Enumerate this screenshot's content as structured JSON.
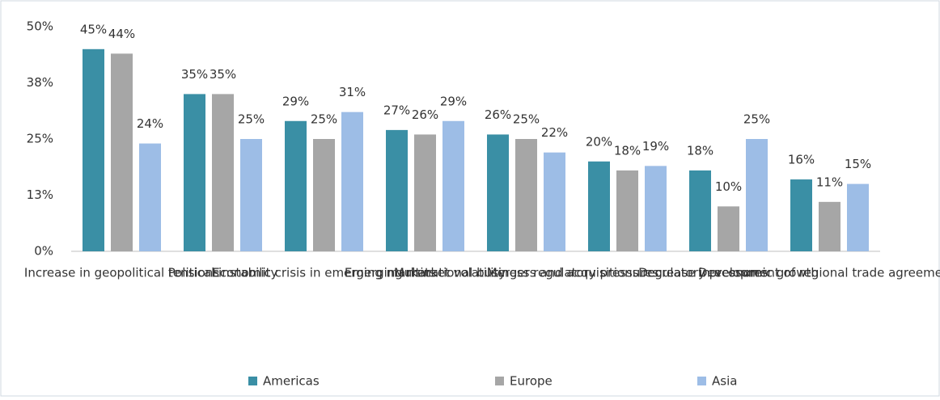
{
  "chart_data": {
    "type": "bar",
    "categories": [
      "Increase in geopolitical tensions",
      "Political instability",
      "Economic crisis in emerging markets",
      "Emerging market volatility",
      "Multinational business regulatory pressures",
      "Mergers and acquisitions regulatory pressures",
      "Decrease in economic growth",
      "Development of regional trade agreements"
    ],
    "series": [
      {
        "name": "Americas",
        "color": "#3a8fa5",
        "values": [
          45,
          35,
          29,
          27,
          26,
          20,
          18,
          16
        ],
        "value_labels": [
          "45%",
          "35%",
          "29%",
          "27%",
          "26%",
          "20%",
          "18%",
          "16%"
        ]
      },
      {
        "name": "Europe",
        "color": "#a6a6a6",
        "values": [
          44,
          35,
          25,
          26,
          25,
          18,
          10,
          11
        ],
        "value_labels": [
          "44%",
          "35%",
          "25%",
          "26%",
          "25%",
          "18%",
          "10%",
          "11%"
        ]
      },
      {
        "name": "Asia",
        "color": "#9dbde6",
        "values": [
          24,
          25,
          31,
          29,
          22,
          19,
          25,
          15
        ],
        "value_labels": [
          "24%",
          "25%",
          "31%",
          "29%",
          "22%",
          "19%",
          "25%",
          "15%"
        ]
      }
    ],
    "ylim": [
      0,
      50
    ],
    "yticks": [
      {
        "value": 0,
        "label": "0%"
      },
      {
        "value": 12.5,
        "label": "13%"
      },
      {
        "value": 25,
        "label": "25%"
      },
      {
        "value": 37.5,
        "label": "38%"
      },
      {
        "value": 50,
        "label": "50%"
      }
    ],
    "grid": false,
    "legend": "bottom"
  }
}
